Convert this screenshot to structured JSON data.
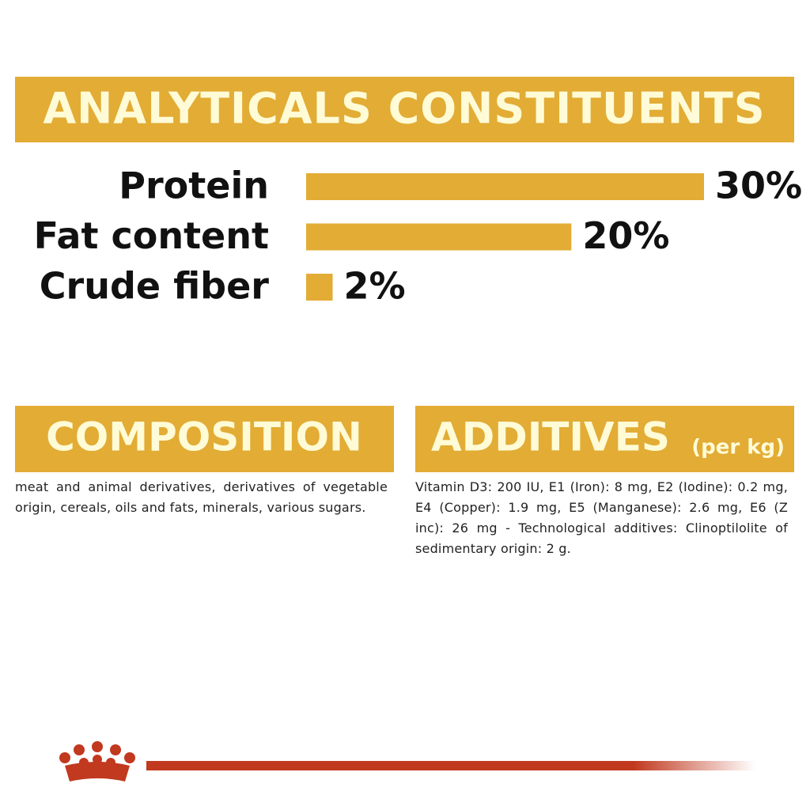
{
  "chart_data": {
    "type": "bar",
    "title": "ANALYTICALS CONSTITUENTS",
    "categories": [
      "Protein",
      "Fat content",
      "Crude fiber"
    ],
    "values": [
      30,
      20,
      2
    ],
    "value_labels": [
      "30%",
      "20%",
      "2%"
    ],
    "color": "#e2ac35"
  },
  "composition": {
    "title": "COMPOSITION",
    "text": "meat and animal derivatives, derivatives of vegetable origin, cereals, oils and fats, minerals, various sugars."
  },
  "additives": {
    "title": "ADDITIVES",
    "subtitle": "(per kg)",
    "text": "Vitamin D3: 200 IU, E1 (Iron): 8 mg, E2 (Iodine): 0.2 mg, E4 (Copper): 1.9 mg, E5 (Manganese): 2.6 mg, E6 (Z inc): 26 mg - Technological additives: Clinoptilolite of sedimentary origin: 2 g."
  }
}
